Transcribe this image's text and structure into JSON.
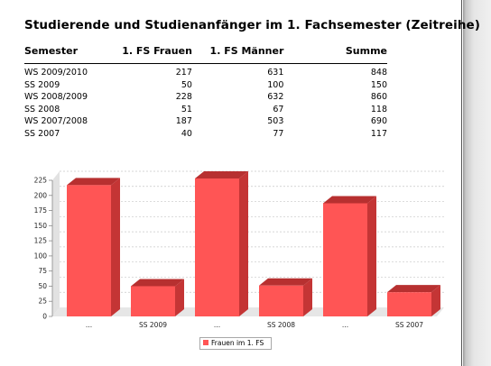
{
  "page": {
    "title": "Studierende und Studienanfänger im 1. Fachsemester (Zeitreihe)"
  },
  "table": {
    "headers": [
      "Semester",
      "1. FS Frauen",
      "1. FS Männer",
      "Summe"
    ],
    "rows": [
      [
        "WS 2009/2010",
        "217",
        "631",
        "848"
      ],
      [
        "SS 2009",
        "50",
        "100",
        "150"
      ],
      [
        "WS 2008/2009",
        "228",
        "632",
        "860"
      ],
      [
        "SS 2008",
        "51",
        "67",
        "118"
      ],
      [
        "WS 2007/2008",
        "187",
        "503",
        "690"
      ],
      [
        "SS 2007",
        "40",
        "77",
        "117"
      ]
    ]
  },
  "chart_data": {
    "type": "bar",
    "categories": [
      "...",
      "SS 2009",
      "...",
      "SS 2008",
      "...",
      "SS 2007"
    ],
    "series": [
      {
        "name": "Frauen im 1. FS",
        "values": [
          217,
          50,
          228,
          51,
          187,
          40
        ]
      }
    ],
    "yticks": [
      "0",
      "25",
      "50",
      "75",
      "100",
      "125",
      "150",
      "175",
      "200",
      "225"
    ],
    "ylim": [
      0,
      225
    ],
    "ystep": 25,
    "grid": true,
    "legend": {
      "label": "Frauen im 1. FS",
      "position": "bottom-center"
    },
    "colors": {
      "bar_front": "#ff5555",
      "bar_top": "#b73030",
      "bar_side": "#c43535"
    }
  }
}
